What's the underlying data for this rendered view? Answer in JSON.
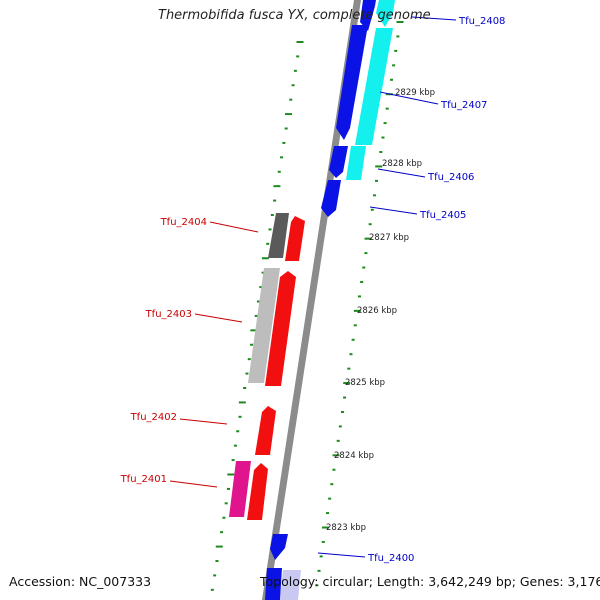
{
  "title": "Thermobifida fusca YX, complete genome",
  "footer": {
    "accession": "Accession: NC_007333",
    "topology": "Topology: circular; Length: 3,642,249 bp; Genes: 3,176"
  },
  "colors": {
    "backbone": "#8c8c8c",
    "blue_gene": "#0b12e6",
    "cyan_gene": "#14f0ee",
    "red_gene": "#f20f0f",
    "dark_gray_gene": "#5a5a5a",
    "light_gray_gene": "#bdbdbd",
    "magenta_gene": "#e0158e",
    "tick": "#1c8a1c",
    "blue_label": "#0000c8",
    "red_label": "#c80000"
  },
  "scale_labels": [
    "2829 kbp",
    "2828 kbp",
    "2827 kbp",
    "2826 kbp",
    "2825 kbp",
    "2824 kbp",
    "2823 kbp"
  ],
  "gene_labels": {
    "right": [
      "Tfu_2408",
      "Tfu_2407",
      "Tfu_2406",
      "Tfu_2405",
      "Tfu_2400"
    ],
    "left": [
      "Tfu_2404",
      "Tfu_2403",
      "Tfu_2402",
      "Tfu_2401"
    ]
  }
}
